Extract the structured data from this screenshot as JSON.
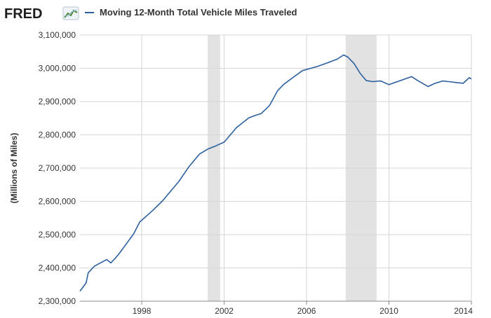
{
  "header": {
    "logo_text": "FRED",
    "logo_icon": "trend-chart-icon",
    "legend_label": "Moving 12-Month Total Vehicle Miles Traveled"
  },
  "colors": {
    "series": "#2c5f9e",
    "recession": "#e2e2e2",
    "grid": "#d6d6d6",
    "axis": "#888888"
  },
  "chart_data": {
    "type": "line",
    "title": "",
    "xlabel": "",
    "ylabel": "(Millions of Miles)",
    "xlim": [
      1995.0,
      2014.0
    ],
    "ylim": [
      2300000,
      3100000
    ],
    "grid": true,
    "legend_placement": "top-left",
    "x_ticks": [
      "1998",
      "2002",
      "2006",
      "2010",
      "2014"
    ],
    "y_ticks": [
      "2,300,000",
      "2,400,000",
      "2,500,000",
      "2,600,000",
      "2,700,000",
      "2,800,000",
      "2,900,000",
      "3,000,000",
      "3,100,000"
    ],
    "recession_bands": [
      [
        2001.2,
        2001.8
      ],
      [
        2007.9,
        2009.4
      ]
    ],
    "series": [
      {
        "name": "Moving 12-Month Total Vehicle Miles Traveled",
        "x": [
          1995.0,
          1995.3,
          1995.4,
          1995.5,
          1995.7,
          1995.9,
          1996.3,
          1996.5,
          1996.6,
          1996.7,
          1996.9,
          1997.2,
          1997.6,
          1997.9,
          1998.5,
          1999.0,
          1999.8,
          2000.3,
          2000.8,
          2001.2,
          2001.6,
          2002.0,
          2002.6,
          2003.2,
          2003.5,
          2003.8,
          2004.2,
          2004.6,
          2004.9,
          2005.4,
          2005.8,
          2006.5,
          2007.0,
          2007.5,
          2007.8,
          2008.0,
          2008.3,
          2008.6,
          2008.9,
          2009.2,
          2009.6,
          2010.0,
          2010.5,
          2011.1,
          2011.4,
          2011.9,
          2012.2,
          2012.6,
          2012.9,
          2013.3,
          2013.6,
          2013.9,
          2014.0
        ],
        "values": [
          2330000,
          2355000,
          2385000,
          2392000,
          2405000,
          2412000,
          2425000,
          2415000,
          2422000,
          2428000,
          2443000,
          2468000,
          2502000,
          2538000,
          2571000,
          2601000,
          2660000,
          2705000,
          2742000,
          2757000,
          2767000,
          2778000,
          2822000,
          2851000,
          2858000,
          2864000,
          2888000,
          2933000,
          2952000,
          2975000,
          2993000,
          3005000,
          3016000,
          3028000,
          3040000,
          3034000,
          3015000,
          2985000,
          2963000,
          2960000,
          2962000,
          2951000,
          2962000,
          2975000,
          2963000,
          2945000,
          2954000,
          2962000,
          2960000,
          2957000,
          2955000,
          2972000,
          2968000
        ]
      }
    ]
  }
}
